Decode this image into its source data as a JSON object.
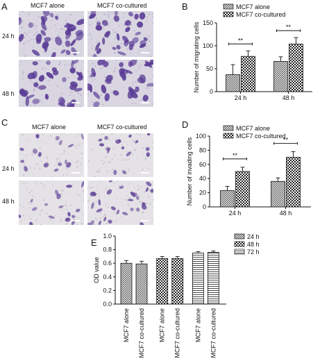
{
  "panels": {
    "A": {
      "letter": "A",
      "col_labels": [
        "MCF7 alone",
        "MCF7 co-cultured"
      ],
      "row_labels": [
        "24 h",
        "48 h"
      ]
    },
    "C": {
      "letter": "C",
      "col_labels": [
        "MCF7 alone",
        "MCF7 co-cultured"
      ],
      "row_labels": [
        "24 h",
        "48 h"
      ]
    }
  },
  "chart_data": [
    {
      "panel": "B",
      "type": "bar",
      "categories": [
        "24 h",
        "48 h"
      ],
      "series": [
        {
          "name": "MCF7 alone",
          "values": [
            37,
            66
          ],
          "errors": [
            22,
            10
          ]
        },
        {
          "name": "MCF7 co-cultured",
          "values": [
            77,
            104
          ],
          "errors": [
            12,
            14
          ]
        }
      ],
      "ylabel": "Number of migrating cells",
      "ylim": [
        0,
        150
      ],
      "yticks": [
        0,
        50,
        100,
        150
      ],
      "significance": [
        "**",
        "**"
      ],
      "legend": "top-left"
    },
    {
      "panel": "D",
      "type": "bar",
      "categories": [
        "24 h",
        "48 h"
      ],
      "series": [
        {
          "name": "MCF7 alone",
          "values": [
            23,
            36
          ],
          "errors": [
            6,
            5
          ]
        },
        {
          "name": "MCF7 co-cultured",
          "values": [
            50,
            70
          ],
          "errors": [
            6,
            8
          ]
        }
      ],
      "ylabel": "Number of invading cells",
      "ylim": [
        0,
        100
      ],
      "yticks": [
        0,
        20,
        40,
        60,
        80,
        100
      ],
      "significance": [
        "**",
        "**"
      ],
      "legend": "top-left"
    },
    {
      "panel": "E",
      "type": "bar",
      "categories": [
        "MCF7 alone",
        "MCF7 co-cultured",
        "MCF7 alone",
        "MCF7 co-cultured",
        "MCF7 alone",
        "MCF7 co-cultured"
      ],
      "groups": [
        "24 h",
        "48 h",
        "72 h"
      ],
      "values": [
        0.6,
        0.59,
        0.67,
        0.67,
        0.75,
        0.76
      ],
      "errors": [
        0.04,
        0.04,
        0.03,
        0.03,
        0.02,
        0.02
      ],
      "ylabel": "OD value",
      "ylim": [
        0,
        1.0
      ],
      "yticks": [
        0.0,
        0.2,
        0.4,
        0.6,
        0.8,
        1.0
      ],
      "legend": "top-right"
    }
  ],
  "colors": {
    "micro_a_bg": "#d9d6e2",
    "micro_a_cell": "#5b3d96",
    "micro_c_bg": "#e4e2e6",
    "micro_c_cell": "#6a4c9e",
    "bar_dark": "#6b6b6b",
    "bar_light": "#ffffff"
  }
}
